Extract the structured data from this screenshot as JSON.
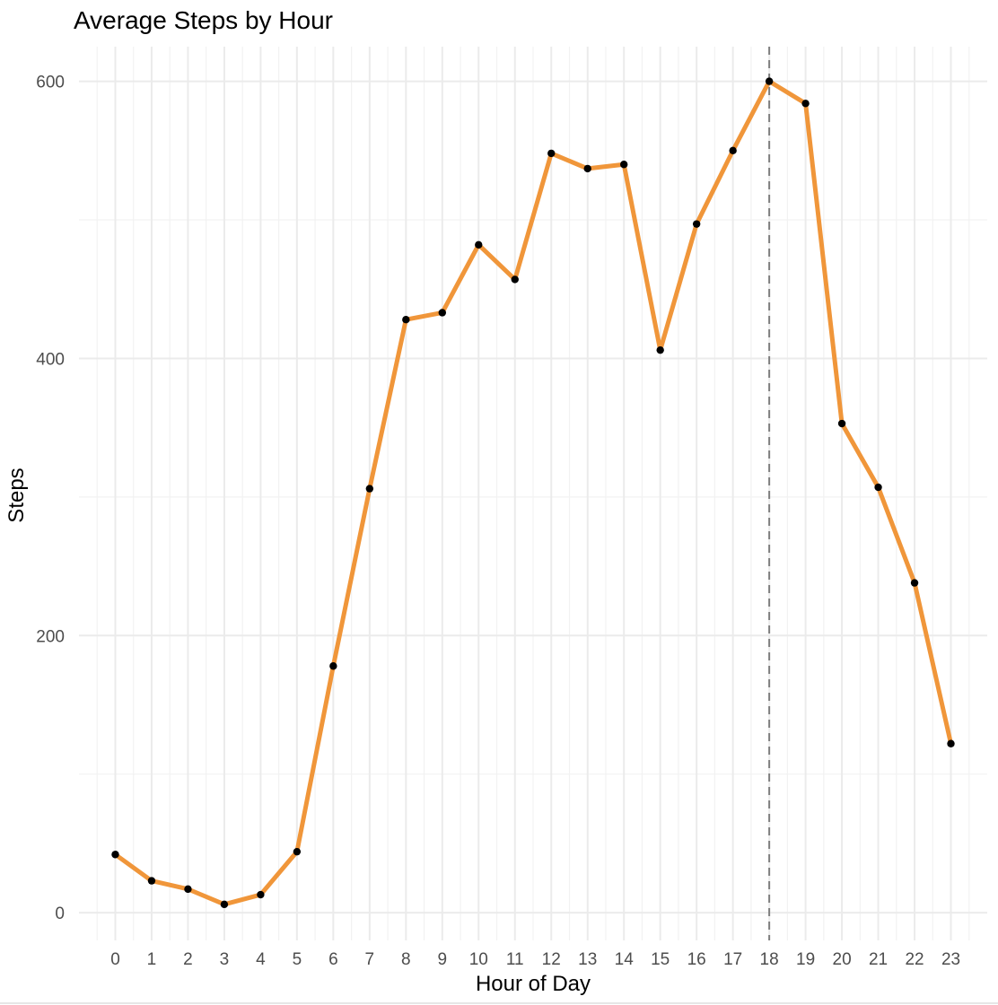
{
  "chart_data": {
    "type": "line",
    "title": "Average Steps by Hour",
    "xlabel": "Hour of Day",
    "ylabel": "Steps",
    "x": [
      0,
      1,
      2,
      3,
      4,
      5,
      6,
      7,
      8,
      9,
      10,
      11,
      12,
      13,
      14,
      15,
      16,
      17,
      18,
      19,
      20,
      21,
      22,
      23
    ],
    "x_tick_labels": [
      "0",
      "1",
      "2",
      "3",
      "4",
      "5",
      "6",
      "7",
      "8",
      "9",
      "10",
      "11",
      "12",
      "13",
      "14",
      "15",
      "16",
      "17",
      "18",
      "19",
      "20",
      "21",
      "22",
      "23"
    ],
    "y": [
      42,
      23,
      17,
      6,
      13,
      44,
      178,
      306,
      428,
      433,
      482,
      457,
      548,
      537,
      540,
      406,
      497,
      550,
      600,
      584,
      353,
      307,
      238,
      122
    ],
    "xlim": [
      -1,
      24
    ],
    "ylim": [
      -20,
      625
    ],
    "y_ticks": [
      0,
      200,
      400,
      600
    ],
    "y_minor_ticks": [
      100,
      300,
      500
    ],
    "grid": true,
    "reference_line": {
      "x": 18,
      "style": "dashed"
    },
    "colors": {
      "line": "#f0963a",
      "points": "#000000",
      "reference_line": "#7f7f7f"
    }
  }
}
